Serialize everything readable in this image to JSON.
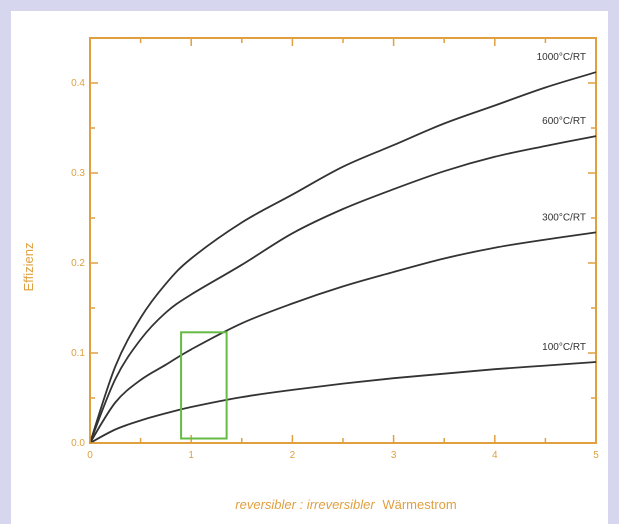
{
  "chart_data": {
    "type": "line",
    "title": "",
    "ylabel": "Effizienz",
    "xlabel": {
      "italic_part": "reversibler : irreversibler",
      "normal_part": "Wärmestrom"
    },
    "xlim": [
      0,
      5
    ],
    "ylim": [
      0,
      0.45
    ],
    "x_ticks": [
      "0",
      "1",
      "2",
      "3",
      "4",
      "5"
    ],
    "y_ticks": [
      "0.0",
      "0.1",
      "0.2",
      "0.3",
      "0.4"
    ],
    "x_tick_values": [
      0,
      1,
      2,
      3,
      4,
      5
    ],
    "y_tick_values": [
      0,
      0.1,
      0.2,
      0.3,
      0.4
    ],
    "grid": false,
    "series": [
      {
        "name": "1000°C/RT",
        "x": [
          0,
          0.25,
          0.5,
          0.75,
          1,
          1.5,
          2,
          2.5,
          3,
          3.5,
          4,
          4.5,
          5
        ],
        "y": [
          0,
          0.085,
          0.139,
          0.177,
          0.205,
          0.245,
          0.276,
          0.307,
          0.331,
          0.355,
          0.375,
          0.395,
          0.412
        ]
      },
      {
        "name": "600°C/RT",
        "x": [
          0,
          0.25,
          0.5,
          0.75,
          1,
          1.5,
          2,
          2.5,
          3,
          3.5,
          4,
          4.5,
          5
        ],
        "y": [
          0,
          0.071,
          0.115,
          0.145,
          0.165,
          0.198,
          0.233,
          0.26,
          0.282,
          0.302,
          0.318,
          0.33,
          0.341
        ]
      },
      {
        "name": "300°C/RT",
        "x": [
          0,
          0.25,
          0.5,
          0.75,
          1,
          1.5,
          2,
          2.5,
          3,
          3.5,
          4,
          4.5,
          5
        ],
        "y": [
          0,
          0.045,
          0.07,
          0.087,
          0.104,
          0.133,
          0.155,
          0.174,
          0.19,
          0.205,
          0.217,
          0.226,
          0.234
        ]
      },
      {
        "name": "100°C/RT",
        "x": [
          0,
          0.25,
          0.5,
          0.75,
          1,
          1.5,
          2,
          2.5,
          3,
          3.5,
          4,
          4.5,
          5
        ],
        "y": [
          0,
          0.015,
          0.025,
          0.033,
          0.04,
          0.051,
          0.059,
          0.066,
          0.072,
          0.077,
          0.082,
          0.086,
          0.09
        ]
      }
    ],
    "highlight_box": {
      "x_range": [
        0.9,
        1.35
      ],
      "y_range": [
        0.005,
        0.123
      ],
      "color": "#66bb44"
    },
    "colors": {
      "axis": "#e0a040",
      "curve": "#333333",
      "background": "#d6d6ee",
      "panel": "#ffffff"
    }
  }
}
